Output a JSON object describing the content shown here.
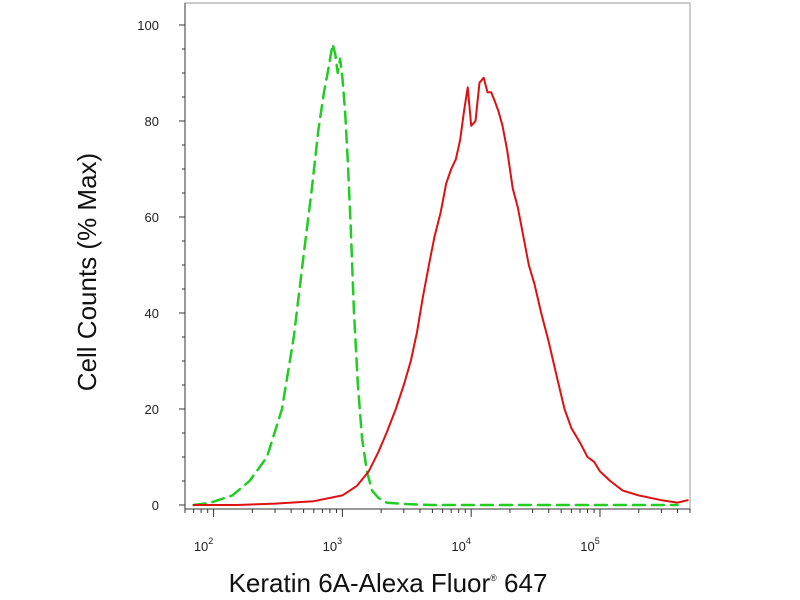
{
  "chart_data": {
    "type": "line",
    "title": "",
    "xlabel_main": "Keratin 6A-Alexa Fluor",
    "xlabel_mark": "®",
    "xlabel_tail": " 647",
    "ylabel": "Cell Counts (% Max)",
    "x_scale": "log",
    "xlim": [
      60,
      500000
    ],
    "ylim": [
      0,
      103
    ],
    "grid": false,
    "legend": "none",
    "x_ticks": [
      {
        "value": 100,
        "base": "10",
        "exp": "2"
      },
      {
        "value": 1000,
        "base": "10",
        "exp": "3"
      },
      {
        "value": 10000,
        "base": "10",
        "exp": "4"
      },
      {
        "value": 100000,
        "base": "10",
        "exp": "5"
      }
    ],
    "y_ticks": [
      {
        "value": 0,
        "label": "0"
      },
      {
        "value": 20,
        "label": "20"
      },
      {
        "value": 40,
        "label": "40"
      },
      {
        "value": 60,
        "label": "60"
      },
      {
        "value": 80,
        "label": "80"
      },
      {
        "value": 100,
        "label": "100"
      }
    ],
    "series": [
      {
        "color": "#22cc22",
        "style": "dashed",
        "x": [
          70,
          95,
          140,
          190,
          260,
          340,
          420,
          500,
          580,
          650,
          720,
          780,
          840,
          880,
          920,
          960,
          1000,
          1050,
          1100,
          1160,
          1230,
          1320,
          1420,
          1550,
          1700,
          1900,
          2200,
          3000,
          5000,
          10000,
          30000,
          100000,
          400000
        ],
        "y": [
          0,
          0.5,
          2,
          5,
          10,
          20,
          35,
          52,
          66,
          78,
          86,
          91,
          96,
          94,
          90,
          93,
          89,
          82,
          72,
          58,
          40,
          25,
          14,
          7,
          3,
          1.5,
          0.5,
          0.2,
          0,
          0,
          0,
          0,
          0
        ]
      },
      {
        "color": "#dd1111",
        "style": "solid",
        "x": [
          70,
          150,
          300,
          600,
          1000,
          1300,
          1600,
          1900,
          2200,
          2600,
          3000,
          3400,
          3800,
          4200,
          4700,
          5200,
          5800,
          6400,
          7000,
          7600,
          8200,
          8800,
          9400,
          10000,
          10800,
          11600,
          12500,
          13400,
          14300,
          15300,
          16300,
          17500,
          19000,
          21000,
          23000,
          25000,
          28000,
          31000,
          35000,
          40000,
          46000,
          53000,
          60000,
          70000,
          80000,
          90000,
          100000,
          120000,
          150000,
          200000,
          300000,
          400000,
          480000
        ],
        "y": [
          0,
          0,
          0.3,
          0.8,
          2,
          4,
          7,
          11,
          15,
          20,
          25,
          30,
          36,
          43,
          50,
          56,
          61,
          67,
          70,
          72,
          76,
          82,
          87,
          79,
          80,
          88,
          89,
          86,
          86,
          84,
          82,
          79,
          74,
          66,
          62,
          57,
          50,
          46,
          40,
          34,
          27,
          20,
          16,
          13,
          10,
          9,
          7,
          5,
          3,
          2,
          1,
          0.5,
          1
        ]
      }
    ]
  }
}
